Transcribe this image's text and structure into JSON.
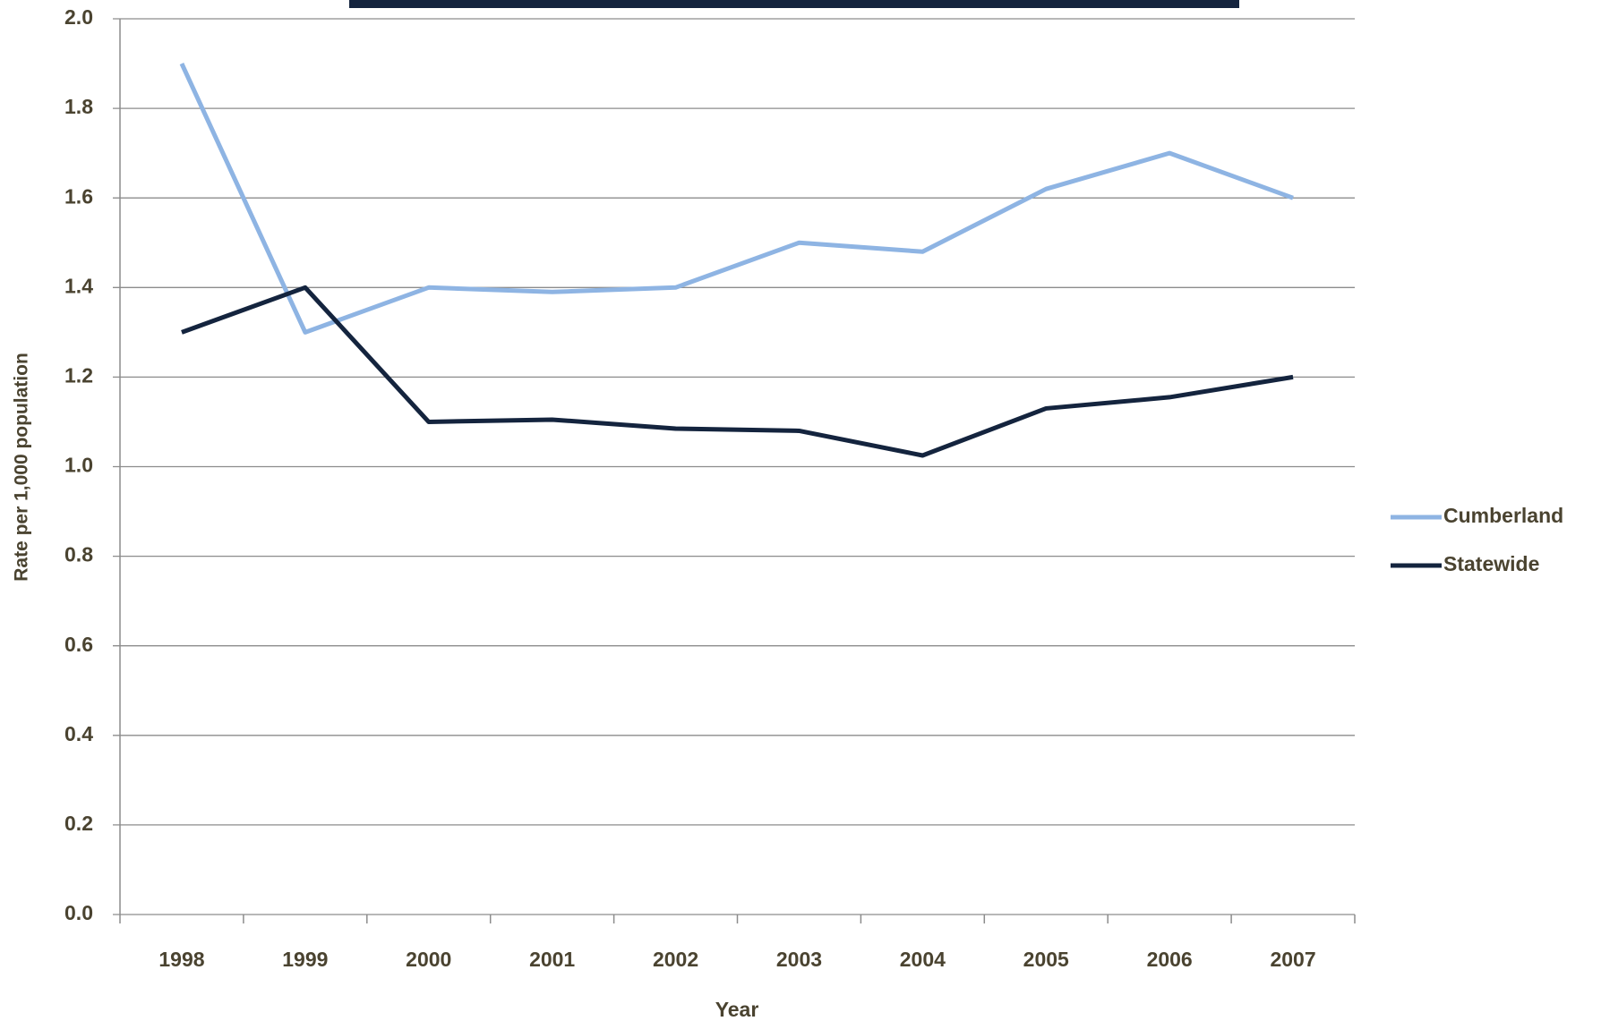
{
  "chart_data": {
    "type": "line",
    "y_label": "Rate per 1,000 population",
    "x_label": "Year",
    "categories": [
      "1998",
      "1999",
      "2000",
      "2001",
      "2002",
      "2003",
      "2004",
      "2005",
      "2006",
      "2007"
    ],
    "series": [
      {
        "name": "Cumberland",
        "color": "#8eb4e3",
        "values": [
          1.9,
          1.3,
          1.4,
          1.39,
          1.4,
          1.5,
          1.48,
          1.62,
          1.7,
          1.6
        ]
      },
      {
        "name": "Statewide",
        "color": "#14243e",
        "values": [
          1.3,
          1.4,
          1.1,
          1.105,
          1.085,
          1.08,
          1.025,
          1.13,
          1.155,
          1.2
        ]
      }
    ],
    "ylim": [
      0,
      2
    ],
    "yticks": [
      {
        "value": 0,
        "label": "0.0"
      },
      {
        "value": 0.2,
        "label": "0.2"
      },
      {
        "value": 0.4,
        "label": "0.4"
      },
      {
        "value": 0.6,
        "label": "0.6"
      },
      {
        "value": 0.8,
        "label": "0.8"
      },
      {
        "value": 1,
        "label": "1.0"
      },
      {
        "value": 1.2,
        "label": "1.2"
      },
      {
        "value": 1.4,
        "label": "1.4"
      },
      {
        "value": 1.6,
        "label": "1.6"
      },
      {
        "value": 1.8,
        "label": "1.8"
      },
      {
        "value": 2,
        "label": "2.0"
      }
    ],
    "grid": true,
    "legend": "right"
  }
}
